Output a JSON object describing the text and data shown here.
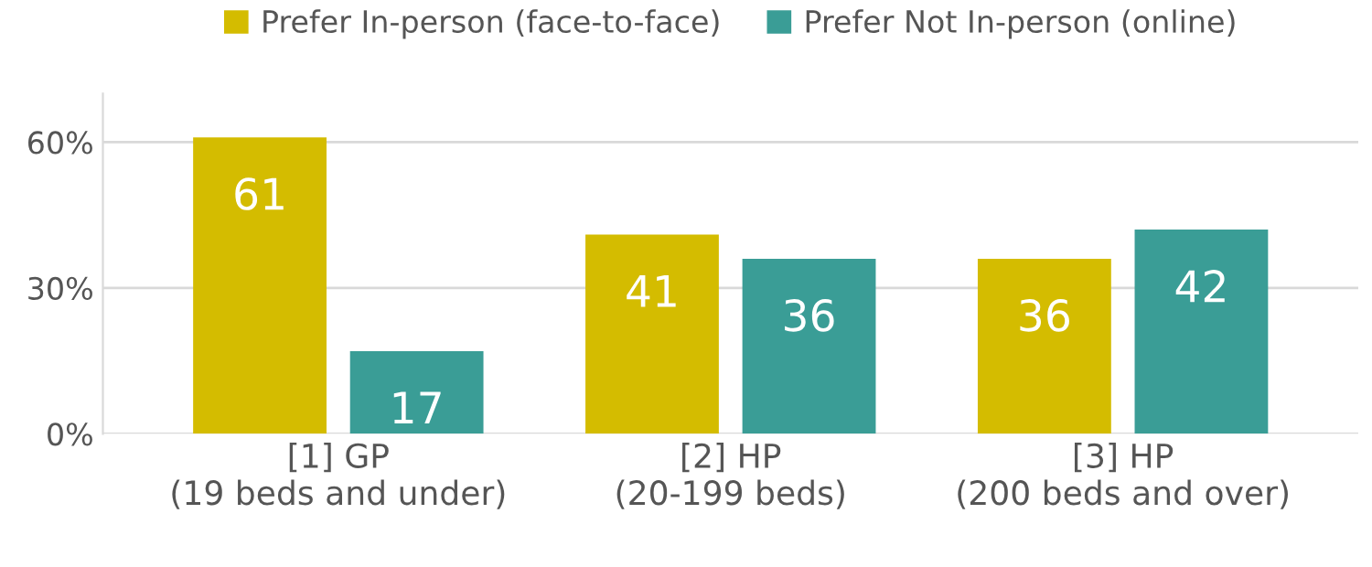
{
  "chart_data": {
    "type": "bar",
    "categories": [
      "[1] GP\n(19 beds and under)",
      "[2] HP\n(20-199 beds)",
      "[3] HP\n(200 beds and over)"
    ],
    "series": [
      {
        "name": "Prefer In-person (face-to-face)",
        "color": "#d4bc00",
        "values": [
          61,
          41,
          36
        ]
      },
      {
        "name": "Prefer Not In-person (online)",
        "color": "#3a9d96",
        "values": [
          17,
          36,
          42
        ]
      }
    ],
    "yticks": [
      {
        "value": 0,
        "label": "0%"
      },
      {
        "value": 30,
        "label": "30%"
      },
      {
        "value": 60,
        "label": "60%"
      }
    ],
    "ylim": [
      0,
      70
    ],
    "grid": "y",
    "legend": "top",
    "data_labels": true
  }
}
